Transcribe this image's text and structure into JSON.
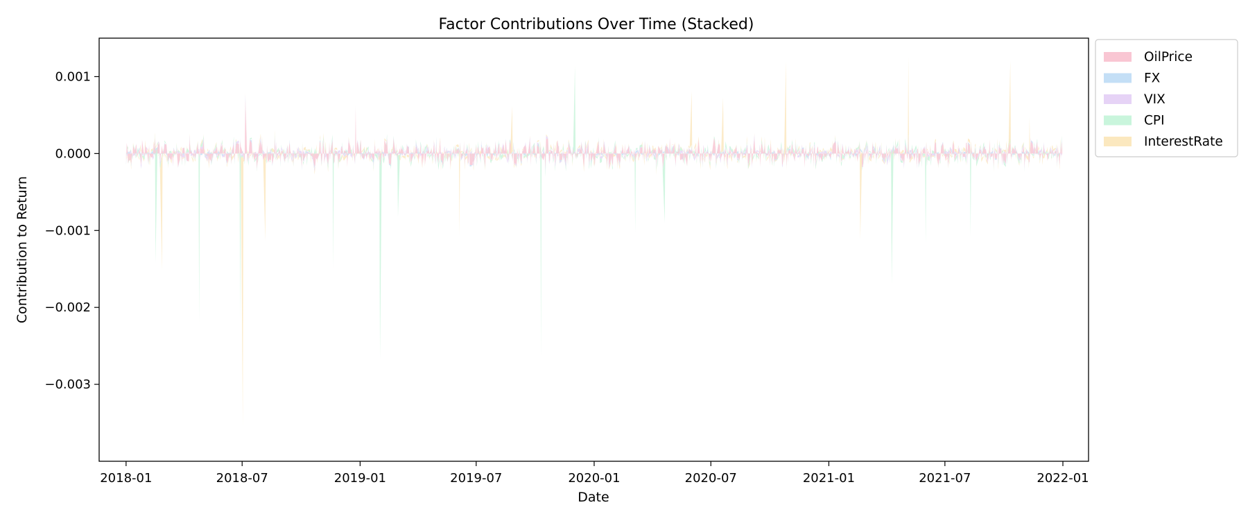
{
  "chart_data": {
    "type": "area",
    "title": "Factor Contributions Over Time (Stacked)",
    "xlabel": "Date",
    "ylabel": "Contribution to Return",
    "stacked": true,
    "x_ticks": [
      "2018-01",
      "2018-07",
      "2019-01",
      "2019-07",
      "2020-01",
      "2020-07",
      "2021-01",
      "2021-07",
      "2022-01"
    ],
    "y_ticks": [
      "−0.003",
      "−0.002",
      "−0.001",
      "0.000",
      "0.001"
    ],
    "y_tick_values": [
      -0.003,
      -0.002,
      -0.001,
      0.0,
      0.001
    ],
    "xlim": [
      "2017-11-20",
      "2022-02-10"
    ],
    "ylim": [
      -0.004,
      0.0015
    ],
    "grid": false,
    "legend_position": "outside-top-right",
    "series": [
      {
        "name": "OilPrice",
        "color": "#f9c6d3"
      },
      {
        "name": "FX",
        "color": "#c4dff6"
      },
      {
        "name": "VIX",
        "color": "#e6d3f6"
      },
      {
        "name": "CPI",
        "color": "#c9f5dc"
      },
      {
        "name": "InterestRate",
        "color": "#fbe8bf"
      }
    ],
    "spikes": [
      {
        "series": "CPI",
        "x": "2018-02-17",
        "value": -0.0014
      },
      {
        "series": "InterestRate",
        "x": "2018-02-25",
        "value": -0.0015
      },
      {
        "series": "CPI",
        "x": "2018-04-25",
        "value": -0.0022
      },
      {
        "series": "CPI",
        "x": "2018-06-28",
        "value": -0.0022
      },
      {
        "series": "InterestRate",
        "x": "2018-07-01",
        "value": -0.0035
      },
      {
        "series": "OilPrice",
        "x": "2018-07-07",
        "value": 0.0007
      },
      {
        "series": "InterestRate",
        "x": "2018-08-05",
        "value": -0.0011
      },
      {
        "series": "CPI",
        "x": "2018-11-20",
        "value": -0.0014
      },
      {
        "series": "OilPrice",
        "x": "2018-12-25",
        "value": 0.0006
      },
      {
        "series": "CPI",
        "x": "2019-02-01",
        "value": -0.0025
      },
      {
        "series": "CPI",
        "x": "2019-03-01",
        "value": -0.0008
      },
      {
        "series": "InterestRate",
        "x": "2019-06-05",
        "value": -0.001
      },
      {
        "series": "InterestRate",
        "x": "2019-08-25",
        "value": 0.0006
      },
      {
        "series": "CPI",
        "x": "2019-10-10",
        "value": -0.0026
      },
      {
        "series": "CPI",
        "x": "2019-12-01",
        "value": 0.0011
      },
      {
        "series": "CPI",
        "x": "2020-03-05",
        "value": -0.0009
      },
      {
        "series": "CPI",
        "x": "2020-04-20",
        "value": -0.0009
      },
      {
        "series": "InterestRate",
        "x": "2020-06-01",
        "value": 0.0007
      },
      {
        "series": "InterestRate",
        "x": "2020-07-20",
        "value": 0.0007
      },
      {
        "series": "InterestRate",
        "x": "2020-10-25",
        "value": 0.0011
      },
      {
        "series": "InterestRate",
        "x": "2021-02-20",
        "value": -0.0011
      },
      {
        "series": "CPI",
        "x": "2021-04-10",
        "value": -0.0017
      },
      {
        "series": "InterestRate",
        "x": "2021-05-05",
        "value": 0.001
      },
      {
        "series": "CPI",
        "x": "2021-06-01",
        "value": -0.0011
      },
      {
        "series": "CPI",
        "x": "2021-08-10",
        "value": -0.001
      },
      {
        "series": "InterestRate",
        "x": "2021-10-10",
        "value": 0.001
      },
      {
        "series": "InterestRate",
        "x": "2021-11-10",
        "value": 0.0004
      }
    ]
  }
}
